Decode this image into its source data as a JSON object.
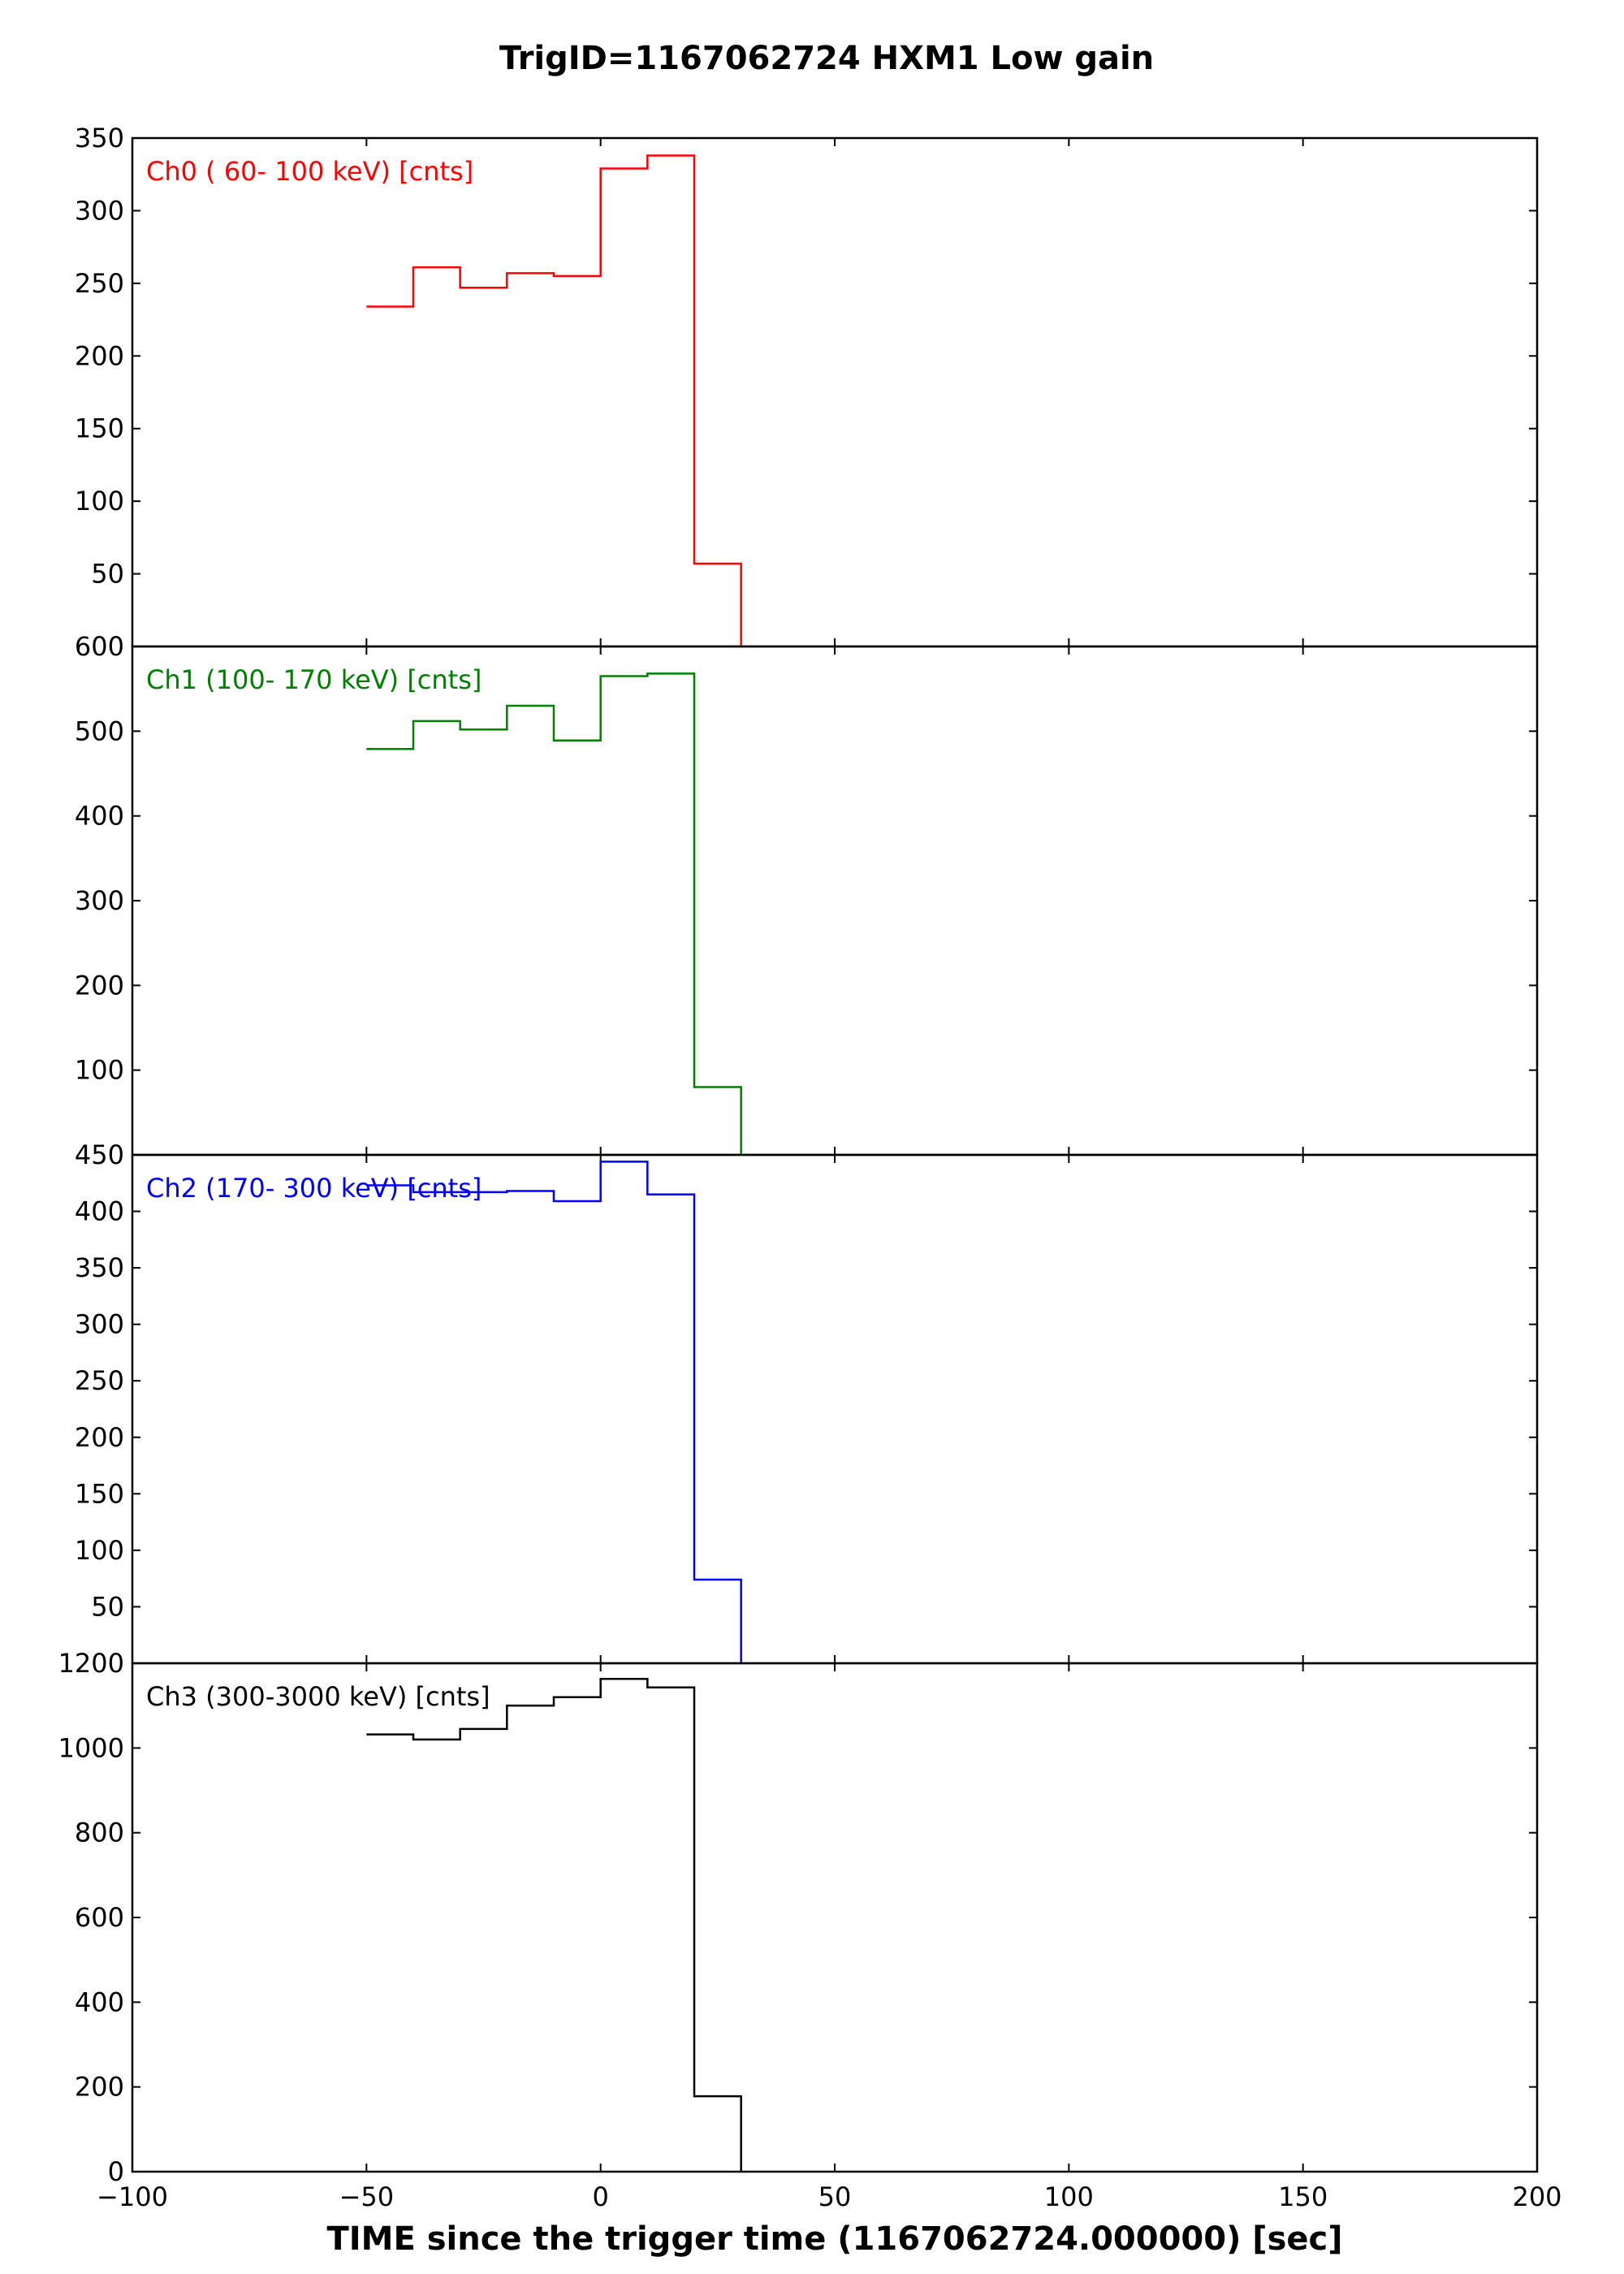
{
  "chart_data": {
    "type": "line",
    "title": "TrigID=1167062724 HXM1 Low gain",
    "xlabel": "TIME since the trigger time (1167062724.000000) [sec]",
    "xlim": [
      -100,
      200
    ],
    "xticks": [
      -100,
      -50,
      0,
      50,
      100,
      150,
      200
    ],
    "xtick_labels": [
      "−100",
      "−50",
      "0",
      "50",
      "100",
      "150",
      "200"
    ],
    "step": "post",
    "grid": false,
    "panels": [
      {
        "name": "Ch0 ( 60- 100 keV) [cnts]",
        "color": "#ff0000",
        "ylim": [
          0,
          350
        ],
        "yticks": [
          50,
          100,
          150,
          200,
          250,
          300,
          350
        ],
        "x": [
          -50,
          -40,
          -30,
          -20,
          -10,
          0,
          10,
          20,
          30
        ],
        "y": [
          234,
          261,
          247,
          257,
          255,
          329,
          338,
          57,
          0
        ]
      },
      {
        "name": "Ch1 (100- 170 keV) [cnts]",
        "color": "#008000",
        "ylim": [
          0,
          600
        ],
        "yticks": [
          100,
          200,
          300,
          400,
          500,
          600
        ],
        "x": [
          -50,
          -40,
          -30,
          -20,
          -10,
          0,
          10,
          20,
          30
        ],
        "y": [
          479,
          512,
          502,
          530,
          489,
          565,
          568,
          80,
          0
        ]
      },
      {
        "name": "Ch2 (170- 300 keV) [cnts]",
        "color": "#0000ff",
        "ylim": [
          0,
          450
        ],
        "yticks": [
          50,
          100,
          150,
          200,
          250,
          300,
          350,
          400,
          450
        ],
        "x": [
          -50,
          -40,
          -30,
          -20,
          -10,
          0,
          10,
          20,
          30
        ],
        "y": [
          423,
          417,
          417,
          418,
          409,
          444,
          415,
          74,
          0
        ]
      },
      {
        "name": "Ch3 (300-3000 keV) [cnts]",
        "color": "#000000",
        "ylim": [
          0,
          1200
        ],
        "yticks": [
          0,
          200,
          400,
          600,
          800,
          1000,
          1200
        ],
        "x": [
          -50,
          -40,
          -30,
          -20,
          -10,
          0,
          10,
          20,
          30
        ],
        "y": [
          1032,
          1020,
          1045,
          1100,
          1120,
          1163,
          1143,
          178,
          0
        ]
      }
    ]
  }
}
